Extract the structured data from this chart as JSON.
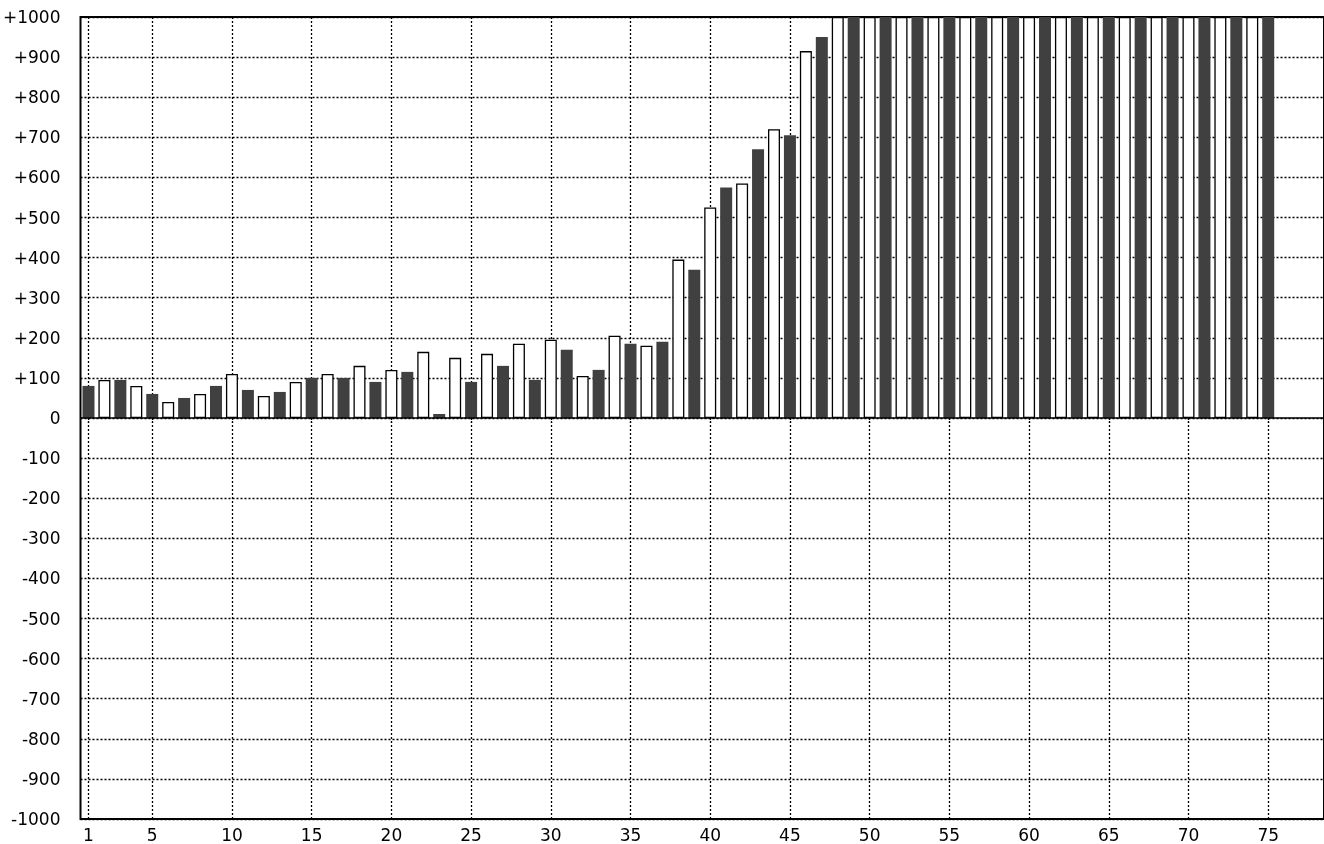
{
  "chart_data": {
    "type": "bar",
    "series": [
      {
        "color": "#404040",
        "x": [
          1,
          3,
          5,
          7,
          9,
          11,
          13,
          15,
          17,
          19,
          21,
          23,
          25,
          27,
          29,
          31,
          33,
          35,
          37,
          39,
          41,
          43,
          45,
          47,
          49,
          51,
          53,
          55,
          57,
          59,
          61,
          63,
          65,
          67,
          69,
          71,
          73,
          75
        ],
        "values": [
          80,
          95,
          60,
          50,
          80,
          70,
          65,
          100,
          100,
          90,
          115,
          10,
          90,
          130,
          95,
          170,
          120,
          185,
          190,
          370,
          575,
          670,
          705,
          950,
          1000,
          1000,
          1000,
          1000,
          1000,
          1000,
          1000,
          1000,
          1000,
          1000,
          1000,
          1000,
          1000,
          1000
        ]
      },
      {
        "color": "#ffffff",
        "x": [
          2,
          4,
          6,
          8,
          10,
          12,
          14,
          16,
          18,
          20,
          22,
          24,
          26,
          28,
          30,
          32,
          34,
          36,
          38,
          40,
          42,
          44,
          46,
          48,
          50,
          52,
          54,
          56,
          58,
          60,
          62,
          64,
          66,
          68,
          70,
          72,
          74
        ],
        "values": [
          95,
          80,
          40,
          60,
          110,
          55,
          90,
          110,
          130,
          120,
          165,
          150,
          160,
          185,
          195,
          105,
          205,
          180,
          395,
          525,
          585,
          720,
          915,
          1000,
          1000,
          1000,
          1000,
          1000,
          1000,
          1000,
          1000,
          1000,
          1000,
          1000,
          1000,
          1000,
          1000
        ]
      }
    ],
    "xlim": [
      0.5,
      78.5
    ],
    "xticks": [
      1,
      5,
      10,
      15,
      20,
      25,
      30,
      35,
      40,
      45,
      50,
      55,
      60,
      65,
      70,
      75
    ],
    "ylim": [
      -1000,
      1000
    ],
    "yticks": [
      -1000,
      -900,
      -800,
      -700,
      -600,
      -500,
      -400,
      -300,
      -200,
      -100,
      0,
      {
        "value": 100,
        "label": "+100"
      },
      {
        "value": 200,
        "label": "+200"
      },
      {
        "value": 300,
        "label": "+300"
      },
      {
        "value": 400,
        "label": "+400"
      },
      {
        "value": 500,
        "label": "+500"
      },
      {
        "value": 600,
        "label": "+600"
      },
      {
        "value": 700,
        "label": "+700"
      },
      {
        "value": 800,
        "label": "+800"
      },
      {
        "value": 900,
        "label": "+900"
      },
      {
        "value": 1000,
        "label": "+1000"
      }
    ],
    "ref_lines": [
      {
        "axis": "y",
        "value": 0,
        "color": "#000000",
        "line_style": "solid"
      }
    ],
    "grid": true
  }
}
